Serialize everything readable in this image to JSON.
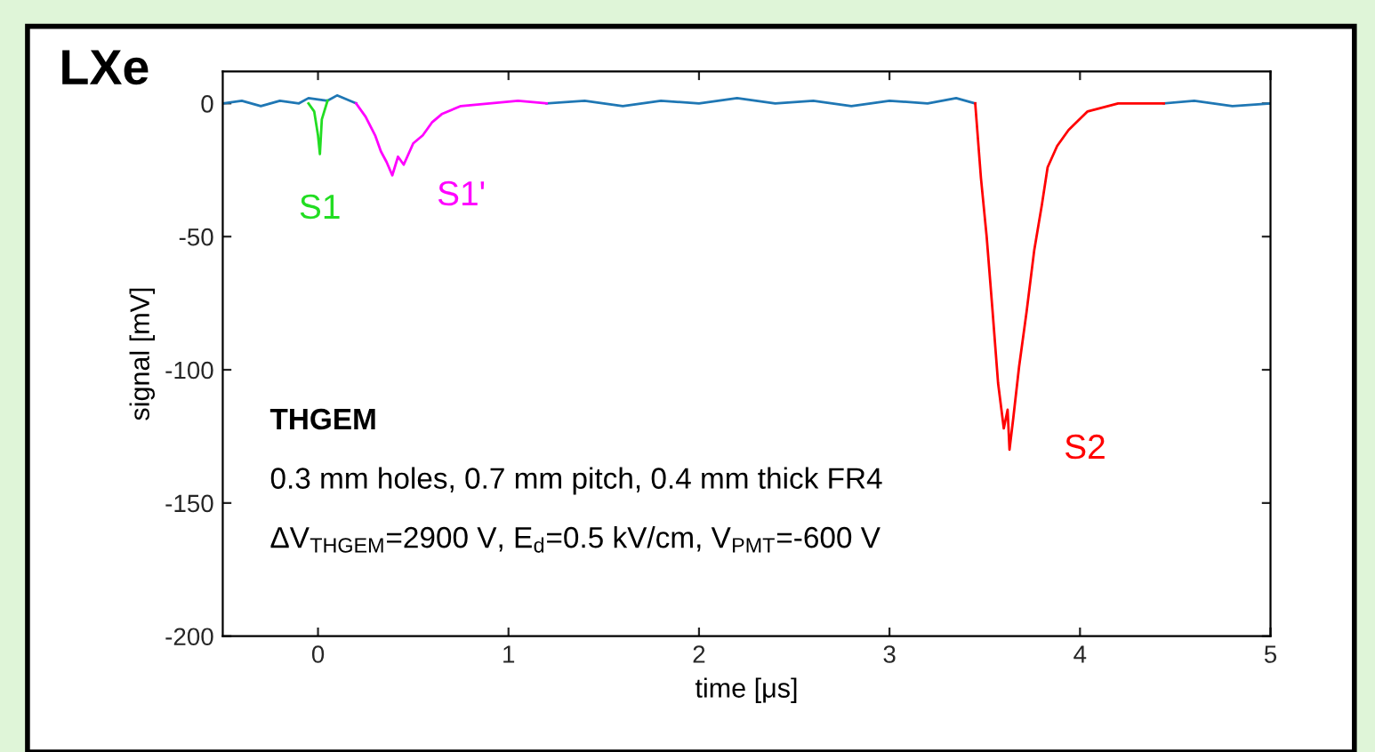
{
  "chart_data": {
    "type": "line",
    "title": "LXe",
    "xlabel": "time [μs]",
    "ylabel": "signal [mV]",
    "xlim": [
      -0.5,
      5
    ],
    "ylim": [
      -200,
      12
    ],
    "xticks": [
      0,
      1,
      2,
      3,
      4,
      5
    ],
    "yticks": [
      -200,
      -150,
      -100,
      -50,
      0
    ],
    "grid": false,
    "legend": false,
    "series": [
      {
        "color": "#1f77b4",
        "x": [
          -0.5,
          -0.4,
          -0.3,
          -0.2,
          -0.1,
          -0.05,
          0.05,
          0.1,
          0.2,
          null,
          1.2,
          1.4,
          1.6,
          1.8,
          2.0,
          2.2,
          2.4,
          2.6,
          2.8,
          3.0,
          3.2,
          3.35,
          3.45,
          null,
          4.44,
          4.6,
          4.8,
          5.0
        ],
        "values": [
          0,
          1,
          -1,
          1,
          0,
          2,
          1,
          3,
          0,
          null,
          0,
          1,
          -1,
          1,
          0,
          2,
          0,
          1,
          -1,
          1,
          0,
          2,
          0,
          null,
          0,
          1,
          -1,
          0
        ]
      },
      {
        "name": "S1",
        "color": "#22dd22",
        "x": [
          -0.05,
          -0.02,
          0.0,
          0.01,
          0.02,
          0.05
        ],
        "values": [
          0,
          -3,
          -12,
          -19,
          -6,
          1
        ]
      },
      {
        "name": "S1'",
        "color": "#ff00ff",
        "x": [
          0.2,
          0.25,
          0.3,
          0.33,
          0.36,
          0.39,
          0.42,
          0.45,
          0.5,
          0.55,
          0.6,
          0.65,
          0.75,
          0.9,
          1.05,
          1.2
        ],
        "values": [
          0,
          -5,
          -12,
          -18,
          -22,
          -27,
          -20,
          -23,
          -15,
          -12,
          -7,
          -4,
          -1,
          0,
          1,
          0
        ]
      },
      {
        "name": "S2",
        "color": "#ff0000",
        "x": [
          3.45,
          3.48,
          3.51,
          3.54,
          3.57,
          3.6,
          3.62,
          3.63,
          3.65,
          3.68,
          3.72,
          3.76,
          3.8,
          3.83,
          3.88,
          3.94,
          4.04,
          4.2,
          4.44
        ],
        "values": [
          0,
          -28,
          -50,
          -77,
          -105,
          -122,
          -115,
          -130,
          -118,
          -99,
          -78,
          -55,
          -38,
          -24,
          -16,
          -10,
          -3,
          0,
          0
        ]
      }
    ],
    "annotations": [
      "THGEM",
      "0.3 mm holes, 0.7 mm pitch, 0.4 mm thick FR4",
      "ΔV$_{THGEM}$=2900 V, E$_{d}$=0.5 kV/cm, V$_{PMT}$=-600 V"
    ]
  }
}
